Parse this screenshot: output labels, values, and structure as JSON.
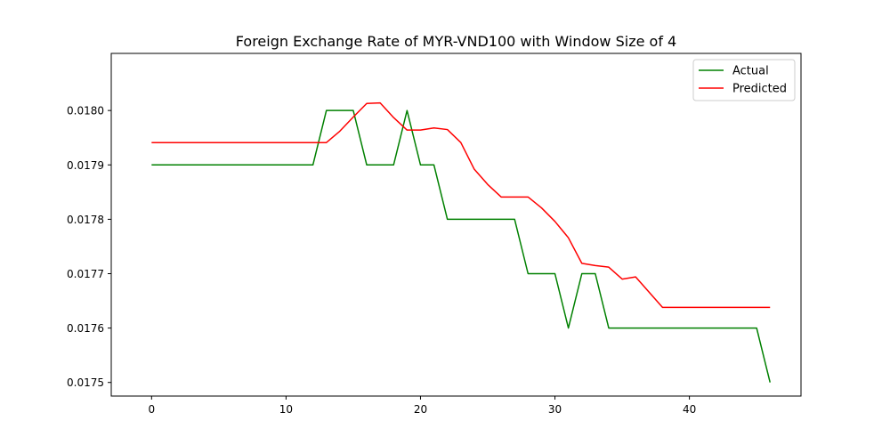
{
  "chart_data": {
    "type": "line",
    "title": "Foreign Exchange Rate of MYR-VND100 with Window Size of 4",
    "xlabel": "",
    "ylabel": "",
    "xlim": [
      -3,
      48.3
    ],
    "ylim": [
      0.017475,
      0.018105
    ],
    "xticks": [
      0,
      10,
      20,
      30,
      40
    ],
    "yticks": [
      0.0175,
      0.0176,
      0.0177,
      0.0178,
      0.0179,
      0.018
    ],
    "ytick_labels": [
      "0.0175",
      "0.0176",
      "0.0177",
      "0.0178",
      "0.0179",
      "0.0180"
    ],
    "grid": false,
    "legend_position": "top-right",
    "x": [
      0,
      1,
      2,
      3,
      4,
      5,
      6,
      7,
      8,
      9,
      10,
      11,
      12,
      13,
      14,
      15,
      16,
      17,
      18,
      19,
      20,
      21,
      22,
      23,
      24,
      25,
      26,
      27,
      28,
      29,
      30,
      31,
      32,
      33,
      34,
      35,
      36,
      37,
      38,
      39,
      40,
      41,
      42,
      43,
      44,
      45,
      46
    ],
    "series": [
      {
        "name": "Actual",
        "color": "#008000",
        "values": [
          0.0179,
          0.0179,
          0.0179,
          0.0179,
          0.0179,
          0.0179,
          0.0179,
          0.0179,
          0.0179,
          0.0179,
          0.0179,
          0.0179,
          0.0179,
          0.018,
          0.018,
          0.018,
          0.0179,
          0.0179,
          0.0179,
          0.018,
          0.0179,
          0.0179,
          0.0178,
          0.0178,
          0.0178,
          0.0178,
          0.0178,
          0.0178,
          0.0177,
          0.0177,
          0.0177,
          0.0176,
          0.0177,
          0.0177,
          0.0176,
          0.0176,
          0.0176,
          0.0176,
          0.0176,
          0.0176,
          0.0176,
          0.0176,
          0.0176,
          0.0176,
          0.0176,
          0.0176,
          0.0175
        ]
      },
      {
        "name": "Predicted",
        "color": "#ff0000",
        "values": [
          0.017941,
          0.017941,
          0.017941,
          0.017941,
          0.017941,
          0.017941,
          0.017941,
          0.017941,
          0.017941,
          0.017941,
          0.017941,
          0.017941,
          0.017941,
          0.017941,
          0.017962,
          0.017988,
          0.018013,
          0.018014,
          0.017987,
          0.017964,
          0.017964,
          0.017968,
          0.017965,
          0.017941,
          0.017892,
          0.017864,
          0.017841,
          0.017841,
          0.017841,
          0.017821,
          0.017796,
          0.017766,
          0.017719,
          0.017715,
          0.017712,
          0.01769,
          0.017694,
          0.017666,
          0.017638,
          0.017638,
          0.017638,
          0.017638,
          0.017638,
          0.017638,
          0.017638,
          0.017638,
          0.017638
        ]
      }
    ]
  }
}
